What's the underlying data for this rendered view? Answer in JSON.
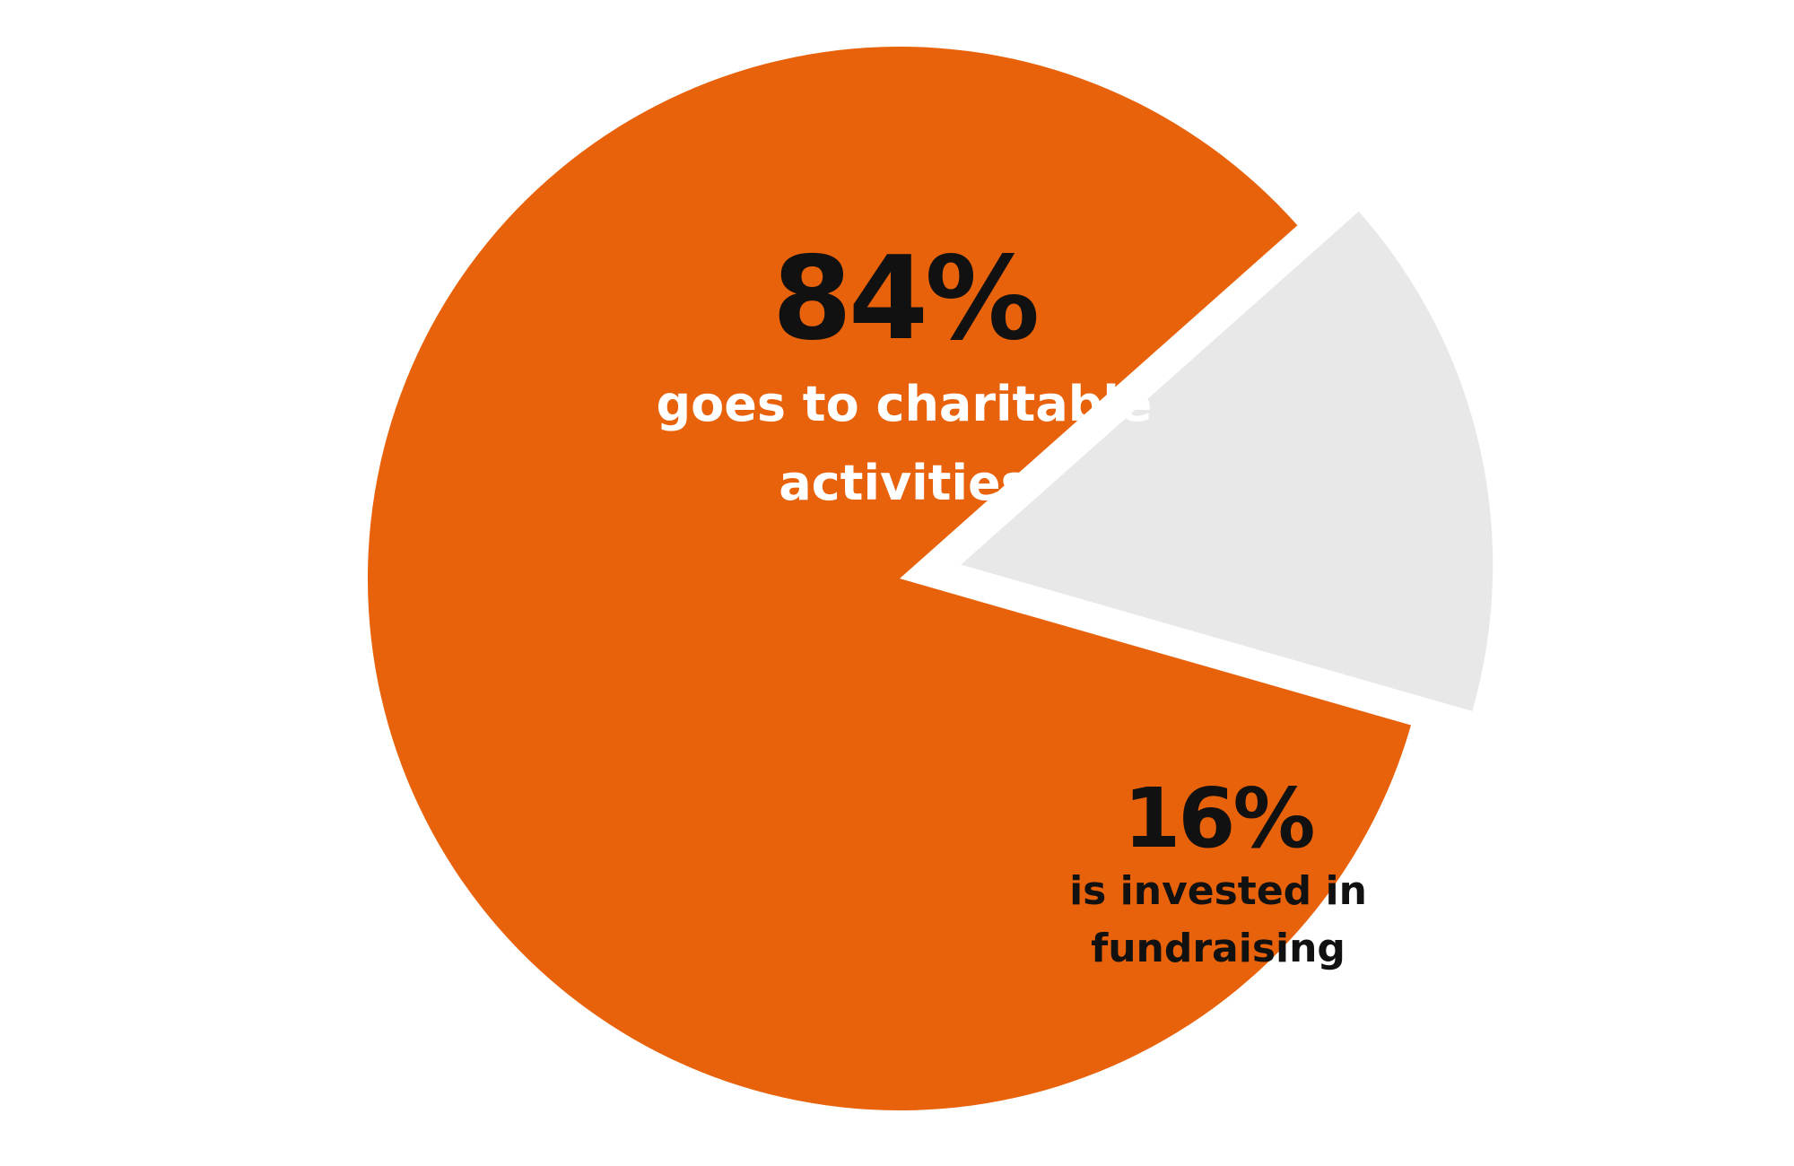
{
  "chart_data": {
    "type": "pie",
    "slices": [
      {
        "value": 84,
        "value_label": "84%",
        "description_lines": [
          "goes to charitable",
          "activities"
        ],
        "color": "#E8620B",
        "text_color": "#ffffff",
        "value_color": "#111111",
        "exploded": false
      },
      {
        "value": 16,
        "value_label": "16%",
        "description_lines": [
          "is invested in",
          "fundraising"
        ],
        "color": "#E8E8E8",
        "text_color": "#111111",
        "value_color": "#111111",
        "exploded": true
      }
    ]
  }
}
